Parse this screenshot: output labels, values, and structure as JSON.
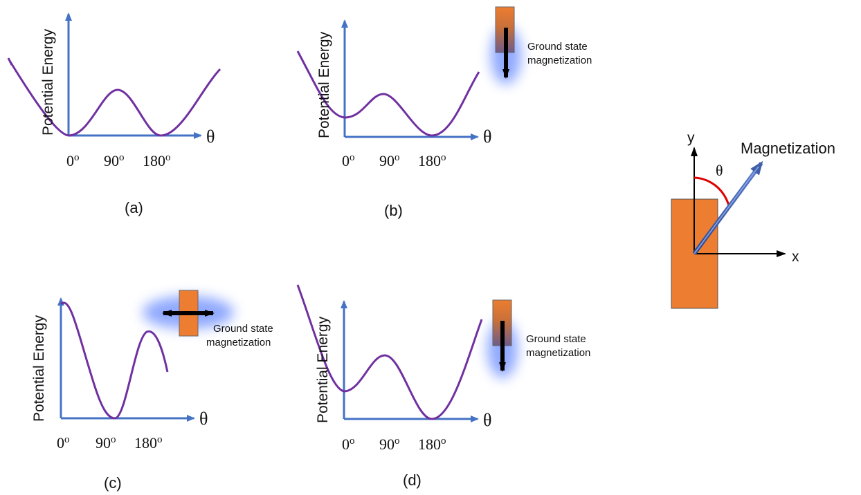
{
  "colors": {
    "axis": "#4472C4",
    "curve": "#7030A0",
    "magnet": "#ED7D31",
    "magnet_border": "#555555",
    "glow": "#6A8CFF",
    "arrow": "#000000",
    "angle_arc": "#E00000"
  },
  "panels": [
    {
      "id": "a",
      "caption": "(a)",
      "y_axis_label": "Potential Energy",
      "x_axis_symbol": "θ",
      "ticks": [
        {
          "value": "0",
          "sup": "o"
        },
        {
          "value": "90",
          "sup": "o"
        },
        {
          "value": "180",
          "sup": "o"
        }
      ],
      "ground_state_label": "",
      "ground_state_direction": "none"
    },
    {
      "id": "b",
      "caption": "(b)",
      "y_axis_label": "Potential Energy",
      "x_axis_symbol": "θ",
      "ticks": [
        {
          "value": "0",
          "sup": "o"
        },
        {
          "value": "90",
          "sup": "o"
        },
        {
          "value": "180",
          "sup": "o"
        }
      ],
      "ground_state_label": [
        "Ground state",
        "magnetization"
      ],
      "ground_state_direction": "down"
    },
    {
      "id": "c",
      "caption": "(c)",
      "y_axis_label": "Potential Energy",
      "x_axis_symbol": "θ",
      "ticks": [
        {
          "value": "0",
          "sup": "o"
        },
        {
          "value": "90",
          "sup": "o"
        },
        {
          "value": "180",
          "sup": "o"
        }
      ],
      "ground_state_label": [
        "Ground state",
        "magnetization"
      ],
      "ground_state_direction": "horizontal"
    },
    {
      "id": "d",
      "caption": "(d)",
      "y_axis_label": "Potential Energy",
      "x_axis_symbol": "θ",
      "ticks": [
        {
          "value": "0",
          "sup": "o"
        },
        {
          "value": "90",
          "sup": "o"
        },
        {
          "value": "180",
          "sup": "o"
        }
      ],
      "ground_state_label": [
        "Ground state",
        "magnetization"
      ],
      "ground_state_direction": "down"
    }
  ],
  "coordinate_diagram": {
    "y_label": "y",
    "x_label": "x",
    "angle_label": "θ",
    "vector_label": "Magnetization"
  }
}
